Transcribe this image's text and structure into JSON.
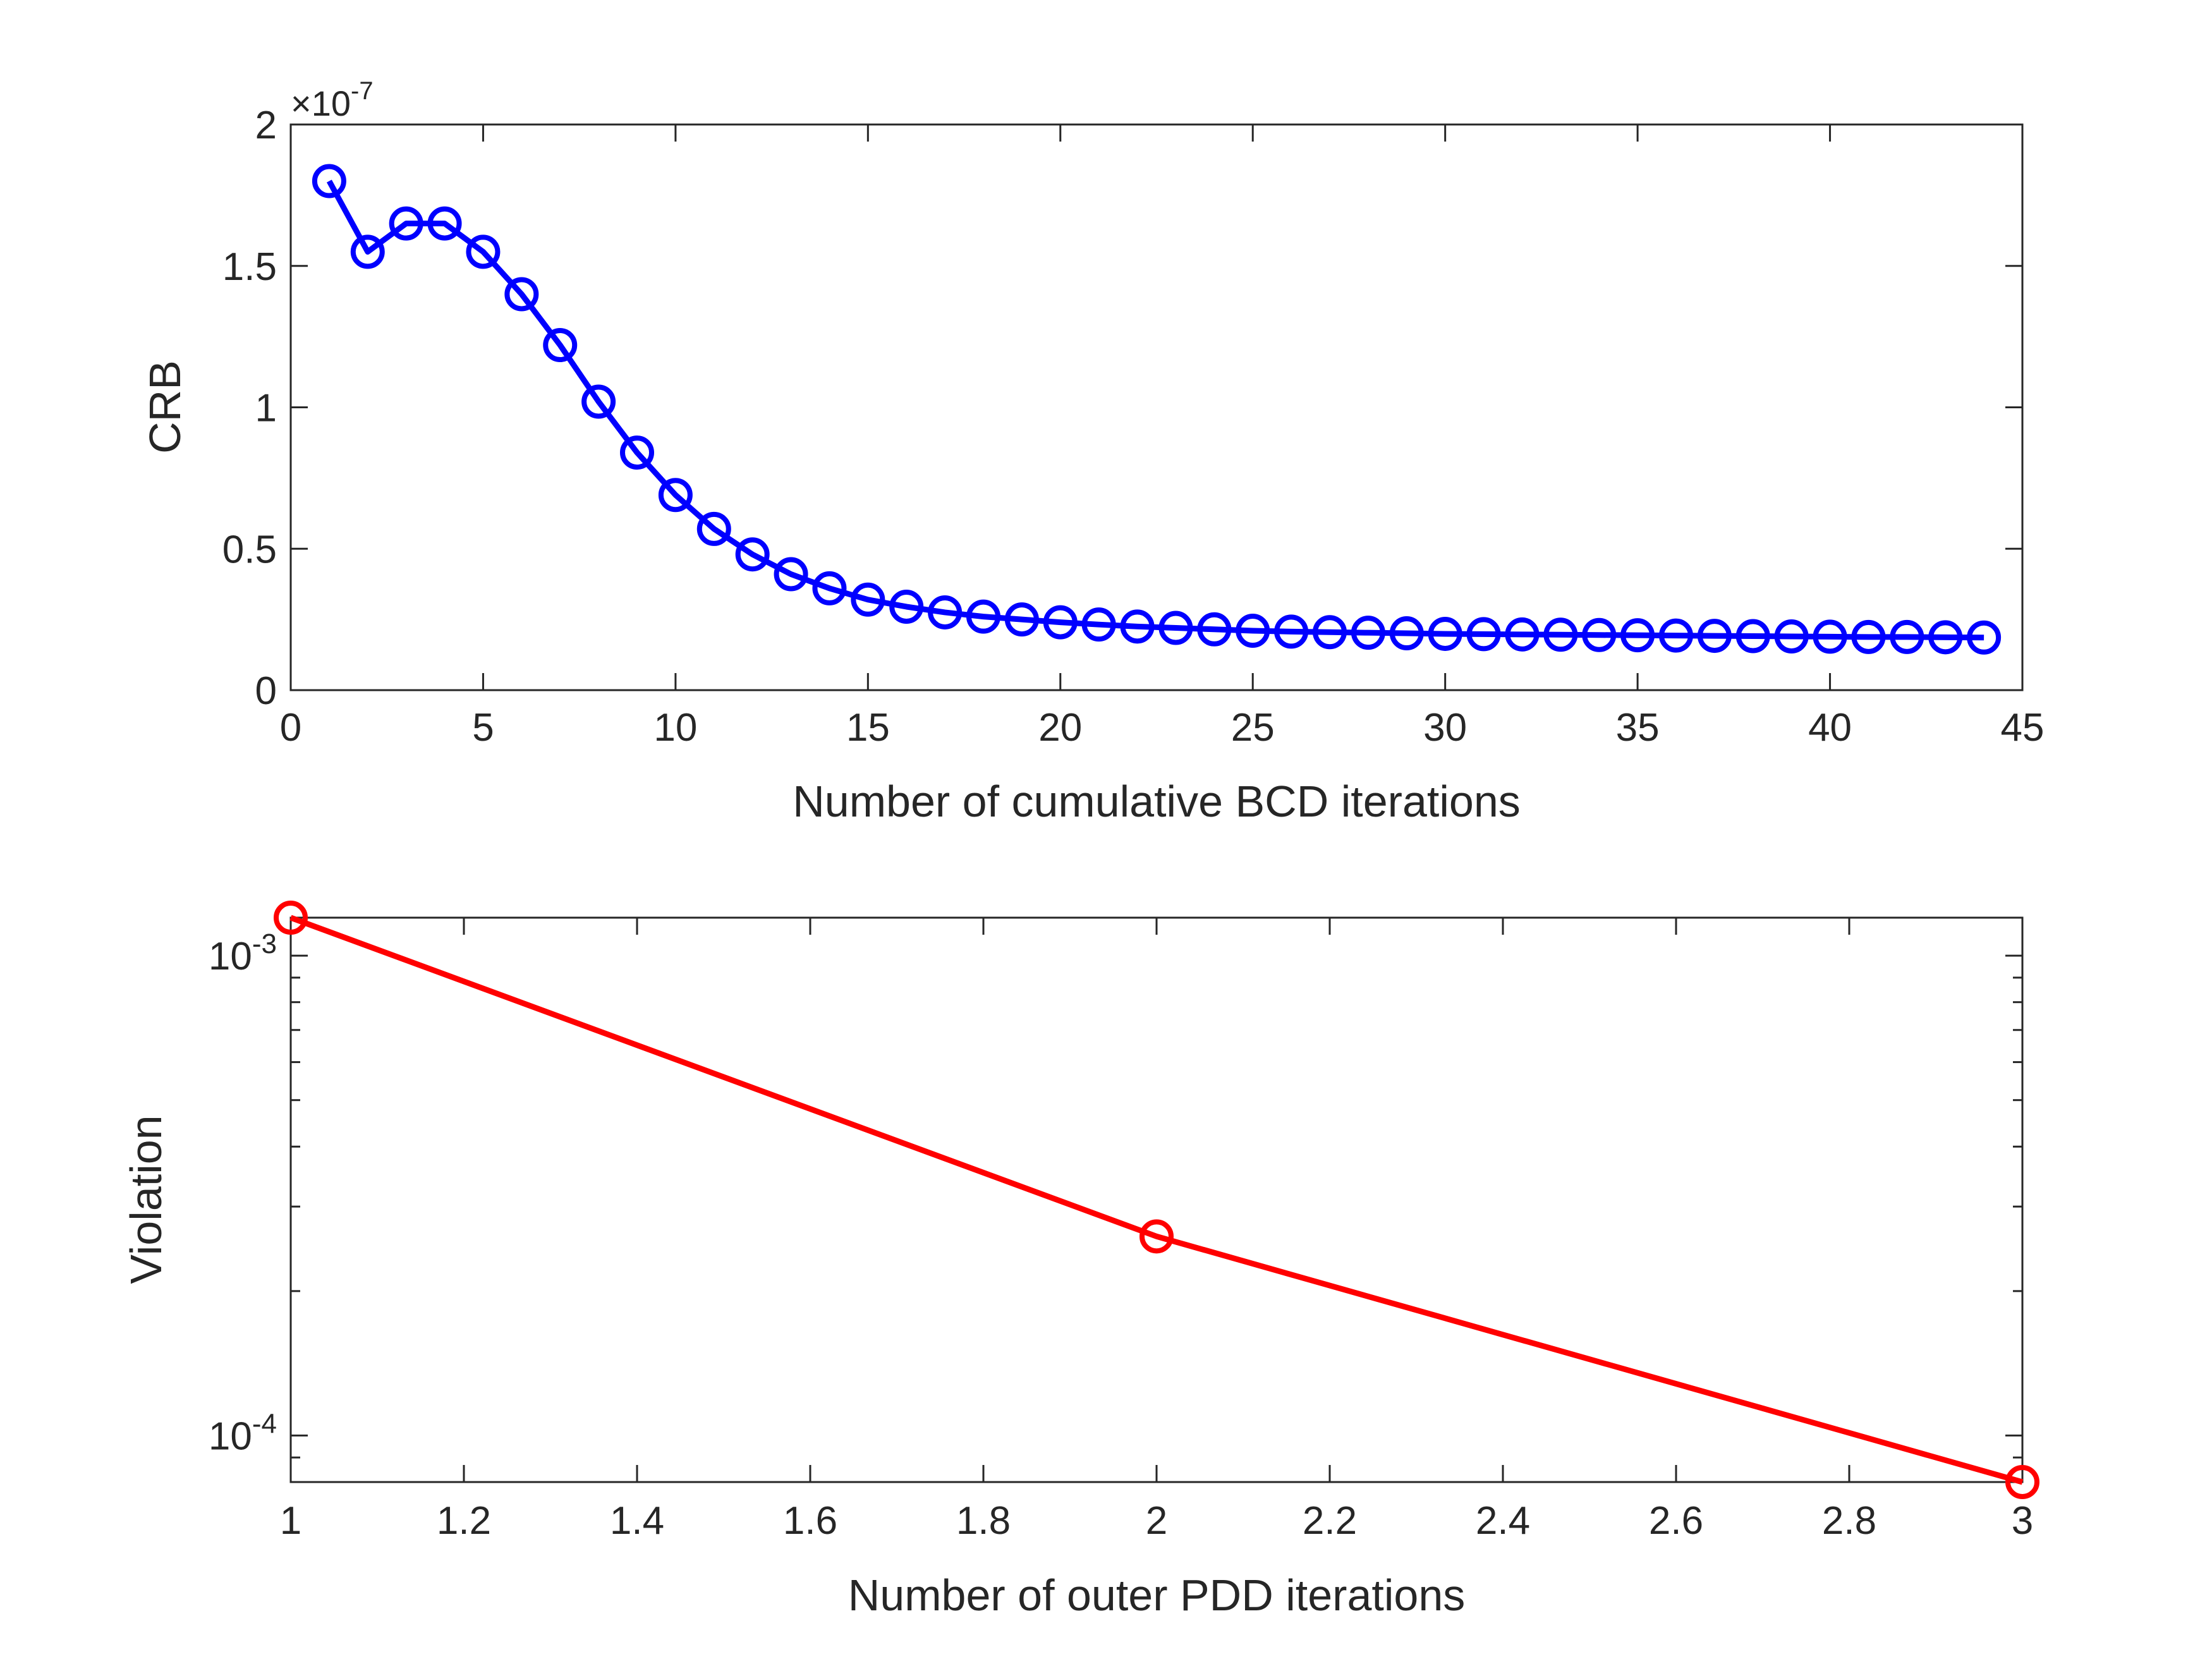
{
  "chart_data": [
    {
      "type": "line",
      "xlabel": "Number of cumulative BCD iterations",
      "ylabel": "CRB",
      "y_exponent_label": {
        "base": "×10",
        "exponent": "-7"
      },
      "xlim": [
        0,
        45
      ],
      "ylim": [
        0,
        2
      ],
      "xticks": [
        0,
        5,
        10,
        15,
        20,
        25,
        30,
        35,
        40,
        45
      ],
      "xtick_labels": [
        "0",
        "5",
        "10",
        "15",
        "20",
        "25",
        "30",
        "35",
        "40",
        "45"
      ],
      "yticks": [
        0,
        0.5,
        1,
        1.5,
        2
      ],
      "ytick_labels": [
        "0",
        "0.5",
        "1",
        "1.5",
        "2"
      ],
      "grid": false,
      "series": [
        {
          "color": "#0000ff",
          "marker": "circle",
          "x": [
            1,
            2,
            3,
            4,
            5,
            6,
            7,
            8,
            9,
            10,
            11,
            12,
            13,
            14,
            15,
            16,
            17,
            18,
            19,
            20,
            21,
            22,
            23,
            24,
            25,
            26,
            27,
            28,
            29,
            30,
            31,
            32,
            33,
            34,
            35,
            36,
            37,
            38,
            39,
            40,
            41,
            42,
            43,
            44
          ],
          "y": [
            1.8,
            1.55,
            1.65,
            1.65,
            1.55,
            1.4,
            1.22,
            1.02,
            0.84,
            0.69,
            0.57,
            0.48,
            0.41,
            0.36,
            0.32,
            0.295,
            0.275,
            0.26,
            0.25,
            0.24,
            0.232,
            0.225,
            0.22,
            0.215,
            0.21,
            0.207,
            0.205,
            0.203,
            0.201,
            0.199,
            0.198,
            0.197,
            0.196,
            0.195,
            0.194,
            0.193,
            0.192,
            0.191,
            0.19,
            0.189,
            0.188,
            0.188,
            0.187,
            0.186
          ]
        }
      ]
    },
    {
      "type": "line",
      "xlabel": "Number of outer PDD iterations",
      "ylabel": "Violation",
      "xlim": [
        1,
        3
      ],
      "ylim": [
        8e-05,
        0.0012
      ],
      "yscale": "log",
      "xticks": [
        1,
        1.2,
        1.4,
        1.6,
        1.8,
        2,
        2.2,
        2.4,
        2.6,
        2.8,
        3
      ],
      "xtick_labels": [
        "1",
        "1.2",
        "1.4",
        "1.6",
        "1.8",
        "2",
        "2.2",
        "2.4",
        "2.6",
        "2.8",
        "3"
      ],
      "yticks_major": [
        0.0001,
        0.001
      ],
      "ytick_labels": [
        {
          "base": "10",
          "exponent": "-4"
        },
        {
          "base": "10",
          "exponent": "-3"
        }
      ],
      "grid": false,
      "series": [
        {
          "color": "#ff0000",
          "marker": "circle",
          "x": [
            1,
            2,
            3
          ],
          "y": [
            0.0012,
            0.00026,
            8e-05
          ]
        }
      ]
    }
  ]
}
